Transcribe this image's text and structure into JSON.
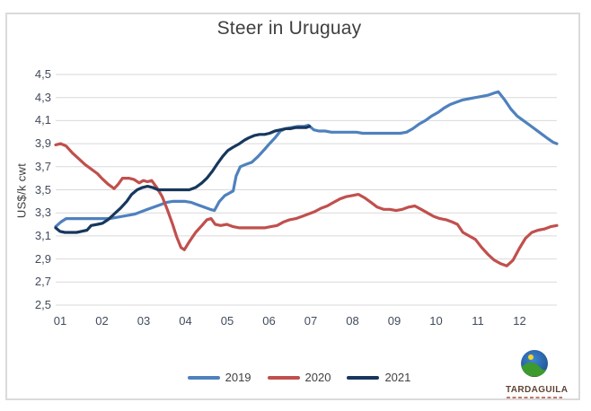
{
  "branding": {
    "logo_text": "TARDAGUILA"
  },
  "chart_data": {
    "type": "line",
    "title": "Steer in Uruguay",
    "xlabel": "",
    "ylabel": "US$/k cwt",
    "grid": true,
    "legend_position": "bottom",
    "x_unit": "month (weekly data)",
    "x_range": [
      1,
      13
    ],
    "ylim": [
      2.5,
      4.5
    ],
    "ytick_step": 0.2,
    "x_ticks": [
      {
        "label": "01",
        "value": 1
      },
      {
        "label": "02",
        "value": 2
      },
      {
        "label": "03",
        "value": 3
      },
      {
        "label": "04",
        "value": 4
      },
      {
        "label": "05",
        "value": 5
      },
      {
        "label": "06",
        "value": 6
      },
      {
        "label": "07",
        "value": 7
      },
      {
        "label": "08",
        "value": 8
      },
      {
        "label": "09",
        "value": 9
      },
      {
        "label": "10",
        "value": 10
      },
      {
        "label": "11",
        "value": 11
      },
      {
        "label": "12",
        "value": 12
      }
    ],
    "y_ticks": [
      {
        "label": "4,5",
        "value": 4.5
      },
      {
        "label": "4,3",
        "value": 4.3
      },
      {
        "label": "4,1",
        "value": 4.1
      },
      {
        "label": "3,9",
        "value": 3.9
      },
      {
        "label": "3,7",
        "value": 3.7
      },
      {
        "label": "3,5",
        "value": 3.5
      },
      {
        "label": "3,3",
        "value": 3.3
      },
      {
        "label": "3,1",
        "value": 3.1
      },
      {
        "label": "2,9",
        "value": 2.9
      },
      {
        "label": "2,7",
        "value": 2.7
      },
      {
        "label": "2,5",
        "value": 2.5
      }
    ],
    "series": [
      {
        "name": "2019",
        "color": "#4F81BD",
        "points": [
          [
            1.0,
            3.18
          ],
          [
            1.12,
            3.22
          ],
          [
            1.25,
            3.25
          ],
          [
            1.4,
            3.25
          ],
          [
            1.55,
            3.25
          ],
          [
            1.7,
            3.25
          ],
          [
            1.85,
            3.25
          ],
          [
            2.0,
            3.25
          ],
          [
            2.15,
            3.25
          ],
          [
            2.3,
            3.25
          ],
          [
            2.45,
            3.26
          ],
          [
            2.6,
            3.27
          ],
          [
            2.75,
            3.28
          ],
          [
            2.9,
            3.29
          ],
          [
            3.05,
            3.31
          ],
          [
            3.2,
            3.33
          ],
          [
            3.35,
            3.35
          ],
          [
            3.5,
            3.37
          ],
          [
            3.65,
            3.39
          ],
          [
            3.8,
            3.4
          ],
          [
            3.95,
            3.4
          ],
          [
            4.1,
            3.4
          ],
          [
            4.25,
            3.39
          ],
          [
            4.4,
            3.37
          ],
          [
            4.55,
            3.35
          ],
          [
            4.7,
            3.33
          ],
          [
            4.8,
            3.32
          ],
          [
            4.92,
            3.4
          ],
          [
            5.05,
            3.45
          ],
          [
            5.15,
            3.47
          ],
          [
            5.25,
            3.49
          ],
          [
            5.32,
            3.62
          ],
          [
            5.42,
            3.7
          ],
          [
            5.55,
            3.72
          ],
          [
            5.7,
            3.74
          ],
          [
            5.85,
            3.79
          ],
          [
            6.0,
            3.85
          ],
          [
            6.12,
            3.9
          ],
          [
            6.25,
            3.95
          ],
          [
            6.38,
            4.01
          ],
          [
            6.5,
            4.03
          ],
          [
            6.65,
            4.04
          ],
          [
            6.8,
            4.05
          ],
          [
            6.95,
            4.05
          ],
          [
            7.05,
            4.06
          ],
          [
            7.18,
            4.02
          ],
          [
            7.3,
            4.01
          ],
          [
            7.45,
            4.01
          ],
          [
            7.6,
            4.0
          ],
          [
            7.75,
            4.0
          ],
          [
            7.9,
            4.0
          ],
          [
            8.05,
            4.0
          ],
          [
            8.2,
            4.0
          ],
          [
            8.35,
            3.99
          ],
          [
            8.5,
            3.99
          ],
          [
            8.65,
            3.99
          ],
          [
            8.8,
            3.99
          ],
          [
            8.95,
            3.99
          ],
          [
            9.1,
            3.99
          ],
          [
            9.25,
            3.99
          ],
          [
            9.4,
            4.0
          ],
          [
            9.55,
            4.03
          ],
          [
            9.7,
            4.07
          ],
          [
            9.85,
            4.1
          ],
          [
            10.0,
            4.14
          ],
          [
            10.15,
            4.17
          ],
          [
            10.3,
            4.21
          ],
          [
            10.45,
            4.24
          ],
          [
            10.6,
            4.26
          ],
          [
            10.75,
            4.28
          ],
          [
            10.9,
            4.29
          ],
          [
            11.05,
            4.3
          ],
          [
            11.2,
            4.31
          ],
          [
            11.35,
            4.32
          ],
          [
            11.5,
            4.34
          ],
          [
            11.6,
            4.35
          ],
          [
            11.75,
            4.28
          ],
          [
            11.9,
            4.2
          ],
          [
            12.05,
            4.14
          ],
          [
            12.2,
            4.1
          ],
          [
            12.35,
            4.06
          ],
          [
            12.5,
            4.02
          ],
          [
            12.65,
            3.98
          ],
          [
            12.8,
            3.94
          ],
          [
            12.92,
            3.91
          ],
          [
            13.0,
            3.9
          ]
        ]
      },
      {
        "name": "2020",
        "color": "#C0504D",
        "points": [
          [
            1.0,
            3.89
          ],
          [
            1.12,
            3.9
          ],
          [
            1.25,
            3.88
          ],
          [
            1.4,
            3.82
          ],
          [
            1.55,
            3.77
          ],
          [
            1.7,
            3.72
          ],
          [
            1.85,
            3.68
          ],
          [
            2.0,
            3.64
          ],
          [
            2.1,
            3.6
          ],
          [
            2.25,
            3.55
          ],
          [
            2.4,
            3.51
          ],
          [
            2.5,
            3.55
          ],
          [
            2.6,
            3.6
          ],
          [
            2.75,
            3.6
          ],
          [
            2.87,
            3.59
          ],
          [
            3.0,
            3.56
          ],
          [
            3.1,
            3.58
          ],
          [
            3.2,
            3.57
          ],
          [
            3.3,
            3.58
          ],
          [
            3.42,
            3.52
          ],
          [
            3.55,
            3.44
          ],
          [
            3.67,
            3.33
          ],
          [
            3.8,
            3.2
          ],
          [
            3.9,
            3.09
          ],
          [
            4.0,
            3.0
          ],
          [
            4.08,
            2.98
          ],
          [
            4.2,
            3.05
          ],
          [
            4.35,
            3.13
          ],
          [
            4.5,
            3.19
          ],
          [
            4.62,
            3.24
          ],
          [
            4.72,
            3.25
          ],
          [
            4.82,
            3.2
          ],
          [
            4.95,
            3.19
          ],
          [
            5.1,
            3.2
          ],
          [
            5.25,
            3.18
          ],
          [
            5.4,
            3.17
          ],
          [
            5.55,
            3.17
          ],
          [
            5.7,
            3.17
          ],
          [
            5.85,
            3.17
          ],
          [
            6.0,
            3.17
          ],
          [
            6.15,
            3.18
          ],
          [
            6.3,
            3.19
          ],
          [
            6.45,
            3.22
          ],
          [
            6.6,
            3.24
          ],
          [
            6.75,
            3.25
          ],
          [
            6.9,
            3.27
          ],
          [
            7.05,
            3.29
          ],
          [
            7.2,
            3.31
          ],
          [
            7.35,
            3.34
          ],
          [
            7.5,
            3.36
          ],
          [
            7.65,
            3.39
          ],
          [
            7.8,
            3.42
          ],
          [
            7.95,
            3.44
          ],
          [
            8.1,
            3.45
          ],
          [
            8.25,
            3.46
          ],
          [
            8.4,
            3.43
          ],
          [
            8.55,
            3.39
          ],
          [
            8.7,
            3.35
          ],
          [
            8.85,
            3.33
          ],
          [
            9.0,
            3.33
          ],
          [
            9.15,
            3.32
          ],
          [
            9.3,
            3.33
          ],
          [
            9.45,
            3.35
          ],
          [
            9.6,
            3.36
          ],
          [
            9.75,
            3.33
          ],
          [
            9.9,
            3.3
          ],
          [
            10.05,
            3.27
          ],
          [
            10.2,
            3.25
          ],
          [
            10.35,
            3.24
          ],
          [
            10.5,
            3.22
          ],
          [
            10.62,
            3.2
          ],
          [
            10.75,
            3.13
          ],
          [
            10.9,
            3.1
          ],
          [
            11.05,
            3.07
          ],
          [
            11.2,
            3.0
          ],
          [
            11.35,
            2.94
          ],
          [
            11.5,
            2.89
          ],
          [
            11.65,
            2.86
          ],
          [
            11.8,
            2.84
          ],
          [
            11.95,
            2.89
          ],
          [
            12.1,
            2.99
          ],
          [
            12.25,
            3.08
          ],
          [
            12.4,
            3.13
          ],
          [
            12.55,
            3.15
          ],
          [
            12.7,
            3.16
          ],
          [
            12.85,
            3.18
          ],
          [
            13.0,
            3.19
          ]
        ]
      },
      {
        "name": "2021",
        "color": "#17375D",
        "points": [
          [
            1.0,
            3.17
          ],
          [
            1.1,
            3.14
          ],
          [
            1.22,
            3.13
          ],
          [
            1.35,
            3.13
          ],
          [
            1.5,
            3.13
          ],
          [
            1.62,
            3.14
          ],
          [
            1.75,
            3.15
          ],
          [
            1.85,
            3.19
          ],
          [
            2.0,
            3.2
          ],
          [
            2.12,
            3.21
          ],
          [
            2.25,
            3.24
          ],
          [
            2.4,
            3.29
          ],
          [
            2.55,
            3.34
          ],
          [
            2.7,
            3.4
          ],
          [
            2.82,
            3.46
          ],
          [
            2.95,
            3.5
          ],
          [
            3.08,
            3.52
          ],
          [
            3.2,
            3.53
          ],
          [
            3.32,
            3.52
          ],
          [
            3.45,
            3.5
          ],
          [
            3.6,
            3.5
          ],
          [
            3.75,
            3.5
          ],
          [
            3.9,
            3.5
          ],
          [
            4.05,
            3.5
          ],
          [
            4.2,
            3.5
          ],
          [
            4.35,
            3.52
          ],
          [
            4.5,
            3.56
          ],
          [
            4.62,
            3.6
          ],
          [
            4.75,
            3.66
          ],
          [
            4.88,
            3.73
          ],
          [
            5.0,
            3.79
          ],
          [
            5.12,
            3.84
          ],
          [
            5.25,
            3.87
          ],
          [
            5.4,
            3.9
          ],
          [
            5.52,
            3.93
          ],
          [
            5.62,
            3.95
          ],
          [
            5.75,
            3.97
          ],
          [
            5.88,
            3.98
          ],
          [
            6.0,
            3.98
          ],
          [
            6.12,
            3.99
          ],
          [
            6.25,
            4.01
          ],
          [
            6.38,
            4.02
          ],
          [
            6.5,
            4.03
          ],
          [
            6.62,
            4.03
          ],
          [
            6.75,
            4.04
          ],
          [
            6.88,
            4.04
          ],
          [
            7.0,
            4.04
          ],
          [
            7.08,
            4.05
          ]
        ]
      }
    ]
  }
}
